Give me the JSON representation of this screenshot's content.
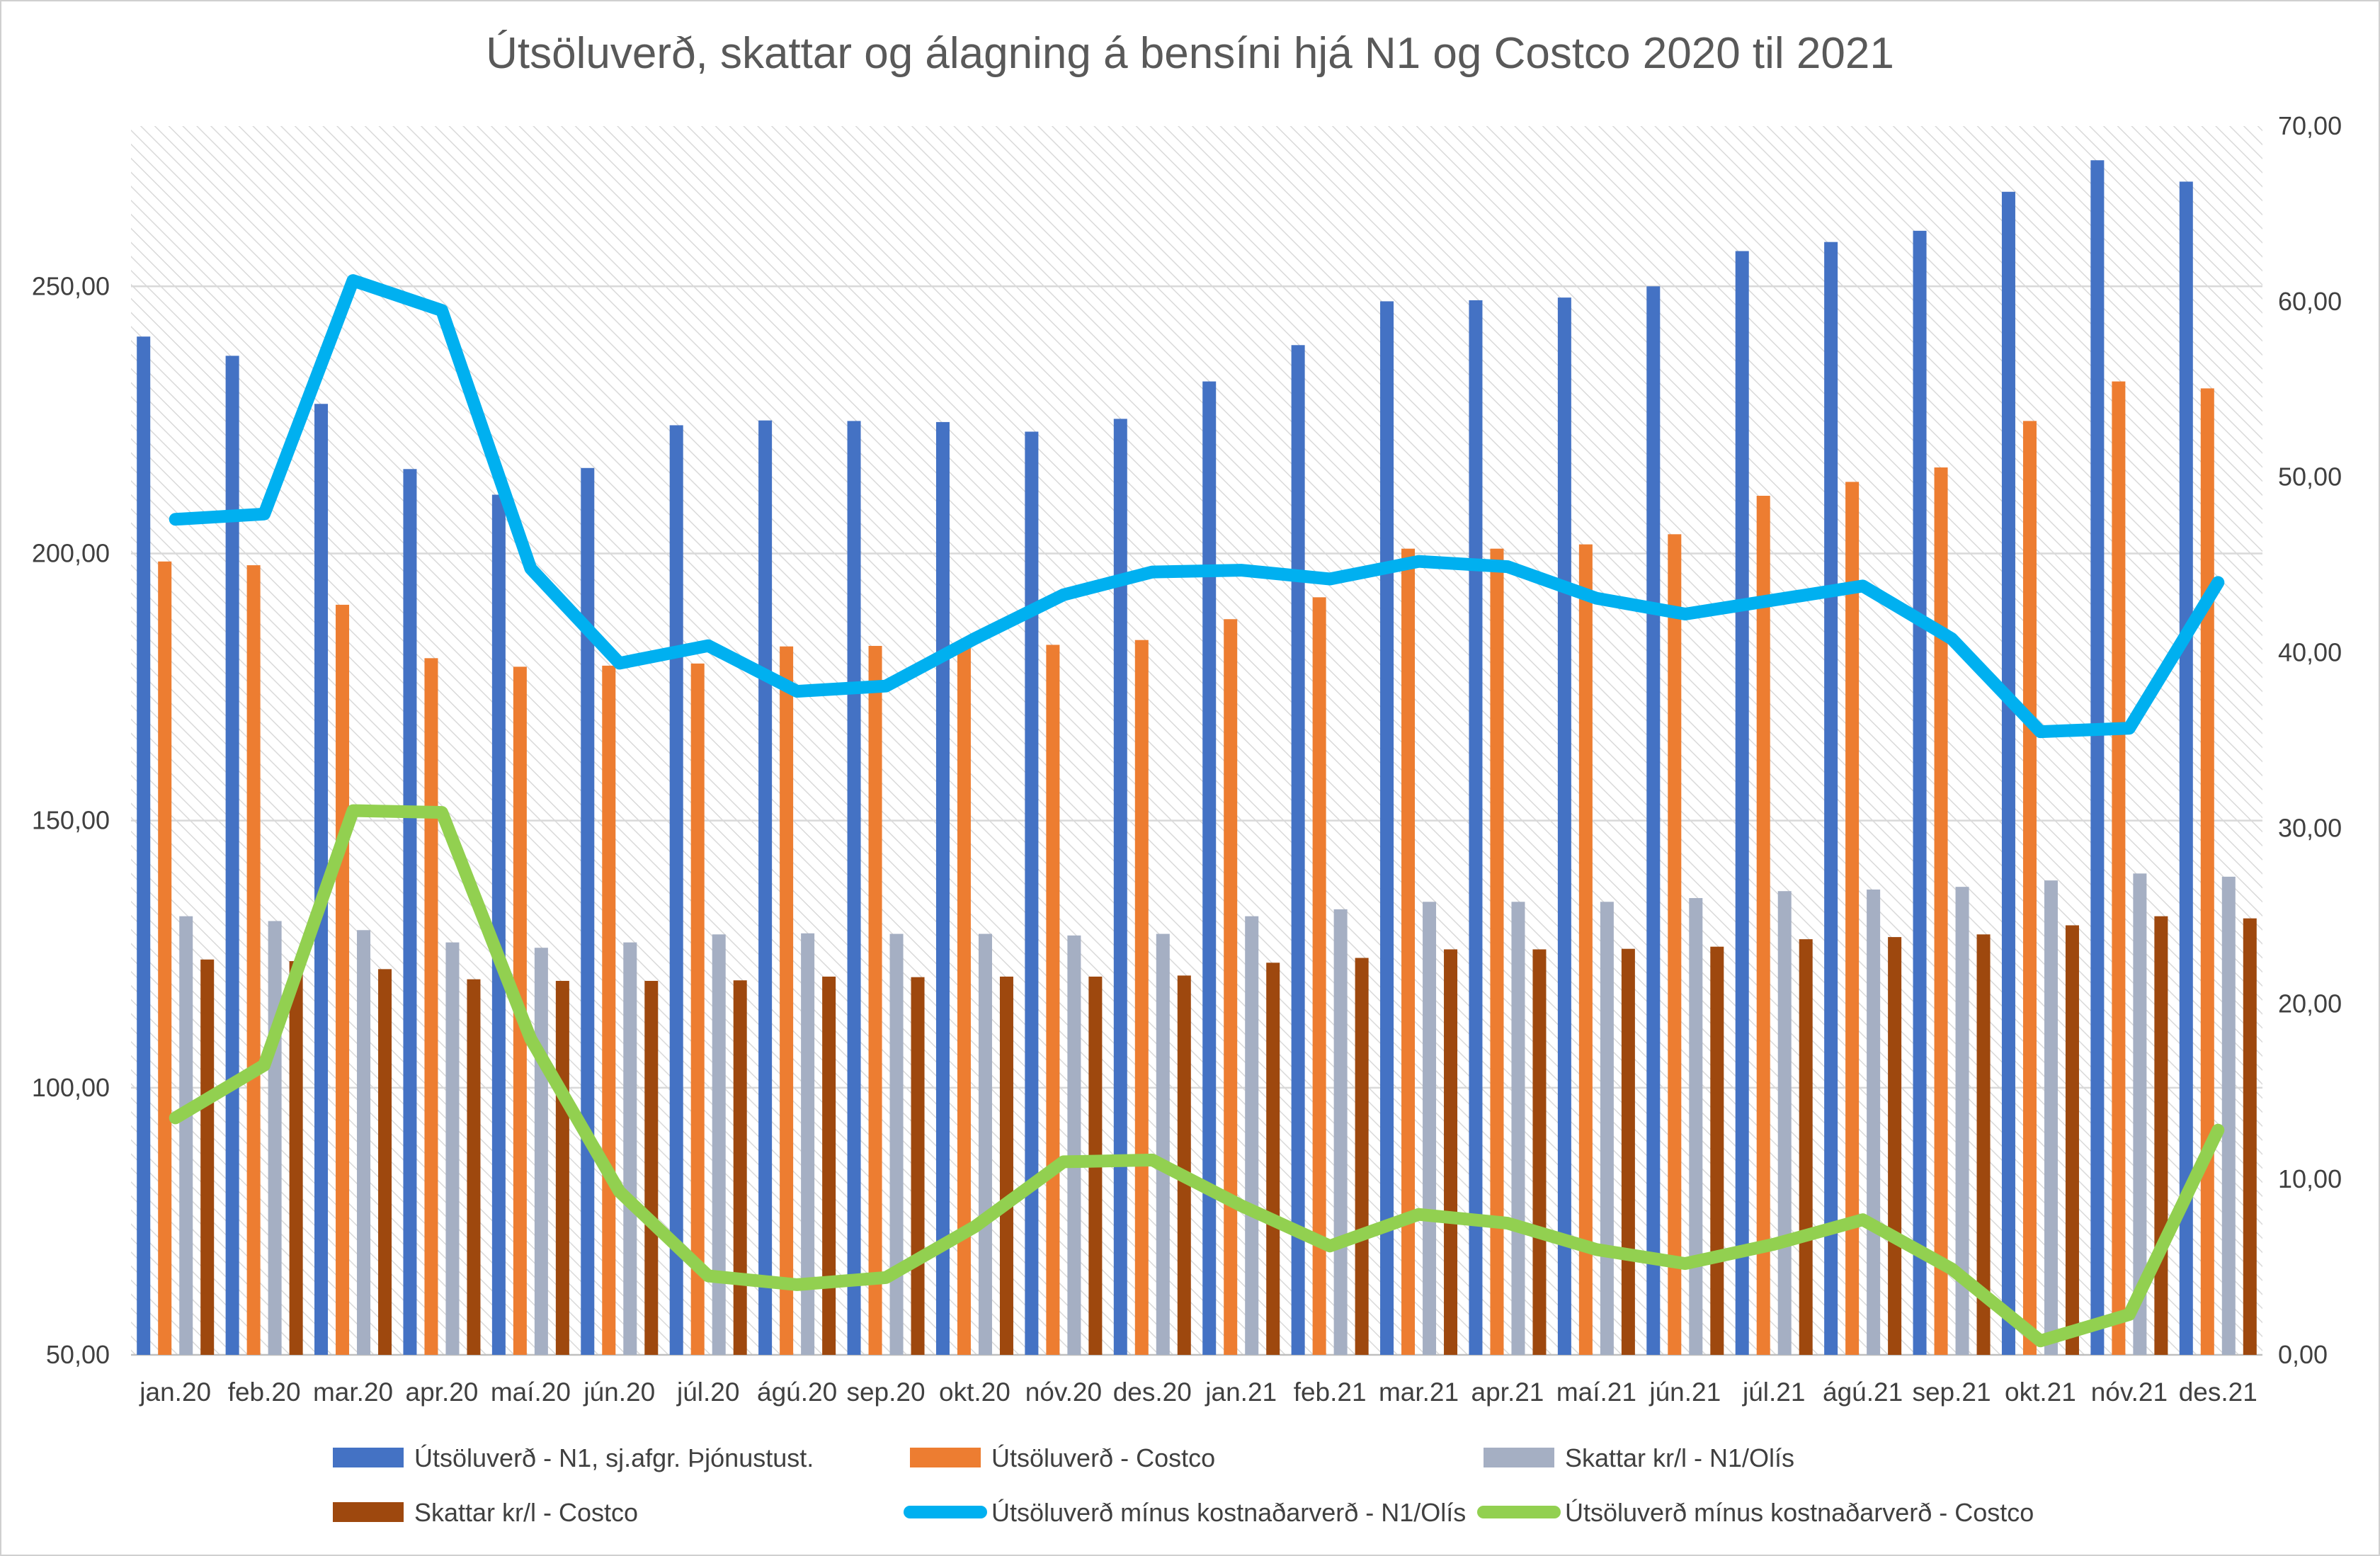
{
  "chart_data": {
    "type": "bar",
    "title": "Útsöluverð, skattar og álagning á bensíni hjá N1 og Costco 2020 til 2021",
    "categories": [
      "jan.20",
      "feb.20",
      "mar.20",
      "apr.20",
      "maí.20",
      "jún.20",
      "júl.20",
      "ágú.20",
      "sep.20",
      "okt.20",
      "nóv.20",
      "des.20",
      "jan.21",
      "feb.21",
      "mar.21",
      "apr.21",
      "maí.21",
      "jún.21",
      "júl.21",
      "ágú.21",
      "sep.21",
      "okt.21",
      "nóv.21",
      "des.21"
    ],
    "left_axis": {
      "ylim": [
        50,
        280
      ],
      "ticks": [
        "50,00",
        "100,00",
        "150,00",
        "200,00",
        "250,00"
      ],
      "tick_values": [
        50,
        100,
        150,
        200,
        250
      ]
    },
    "right_axis": {
      "ylim": [
        0,
        70
      ],
      "ticks": [
        "0,00",
        "10,00",
        "20,00",
        "30,00",
        "40,00",
        "50,00",
        "60,00",
        "70,00"
      ],
      "tick_values": [
        0,
        10,
        20,
        30,
        40,
        50,
        60,
        70
      ]
    },
    "grid": true,
    "legend_position": "bottom",
    "series": [
      {
        "name": "Útsöluverð - N1, sj.afgr. Þjónustust.",
        "kind": "bar",
        "axis": "left",
        "color": "#4472c4",
        "values": [
          240.6,
          237.0,
          228.0,
          215.8,
          211.0,
          216.0,
          224.0,
          224.9,
          224.8,
          224.6,
          222.8,
          225.2,
          232.2,
          239.0,
          247.2,
          247.4,
          247.9,
          250.0,
          256.6,
          258.3,
          260.4,
          267.7,
          273.6,
          269.6
        ]
      },
      {
        "name": "Útsöluverð - Costco",
        "kind": "bar",
        "axis": "left",
        "color": "#ed7d31",
        "values": [
          198.5,
          197.8,
          190.4,
          180.4,
          178.8,
          179.0,
          179.4,
          182.6,
          182.7,
          182.7,
          182.9,
          183.8,
          187.7,
          191.8,
          200.9,
          200.9,
          201.7,
          203.6,
          210.8,
          213.4,
          216.1,
          224.8,
          232.2,
          230.9
        ]
      },
      {
        "name": "Skattar kr/l - N1/Olís",
        "kind": "bar",
        "axis": "left",
        "color": "#a5afc3",
        "values": [
          132.1,
          131.2,
          129.5,
          127.2,
          126.2,
          127.2,
          128.7,
          128.9,
          128.8,
          128.8,
          128.5,
          128.8,
          132.1,
          133.4,
          134.8,
          134.8,
          134.8,
          135.5,
          136.8,
          137.1,
          137.6,
          138.8,
          140.1,
          139.5
        ]
      },
      {
        "name": "Skattar kr/l - Costco",
        "kind": "bar",
        "axis": "left",
        "color": "#9e480e",
        "values": [
          124.0,
          123.7,
          122.2,
          120.3,
          120.0,
          120.0,
          120.1,
          120.8,
          120.7,
          120.8,
          120.8,
          121.0,
          123.4,
          124.3,
          125.9,
          125.9,
          126.0,
          126.4,
          127.8,
          128.2,
          128.7,
          130.4,
          132.1,
          131.7
        ]
      },
      {
        "name": "Útsöluverð mínus kostnaðarverð - N1/Olís",
        "kind": "line",
        "axis": "right",
        "color": "#00b0f0",
        "values": [
          47.6,
          47.9,
          61.2,
          59.5,
          44.8,
          39.4,
          40.4,
          37.8,
          38.1,
          40.8,
          43.3,
          44.6,
          44.7,
          44.2,
          45.2,
          44.9,
          43.1,
          42.2,
          43.0,
          43.8,
          40.8,
          35.5,
          35.7,
          44.0
        ]
      },
      {
        "name": "Útsöluverð mínus kostnaðarverð - Costco",
        "kind": "line",
        "axis": "right",
        "color": "#92d050",
        "values": [
          13.5,
          16.5,
          31.0,
          30.9,
          18.0,
          9.3,
          4.5,
          4.0,
          4.4,
          7.3,
          11.0,
          11.1,
          8.5,
          6.2,
          8.0,
          7.5,
          6.0,
          5.2,
          6.3,
          7.7,
          4.9,
          0.8,
          2.3,
          12.8
        ]
      }
    ]
  }
}
